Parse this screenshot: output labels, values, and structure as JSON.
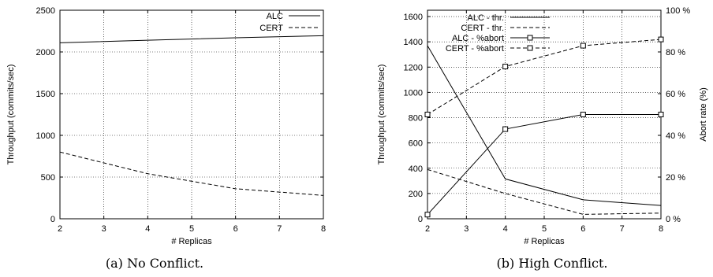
{
  "chart_data": [
    {
      "type": "line",
      "caption": "(a) No Conflict.",
      "xlabel": "# Replicas",
      "ylabel": "Throughput (commits/sec)",
      "xlim": [
        2,
        8
      ],
      "ylim": [
        0,
        2500
      ],
      "xticks": [
        2,
        3,
        4,
        5,
        6,
        7,
        8
      ],
      "yticks": [
        0,
        500,
        1000,
        1500,
        2000,
        2500
      ],
      "grid": true,
      "legend_position": "top-right",
      "series": [
        {
          "name": "ALC",
          "style": "solid",
          "x": [
            2,
            4,
            6,
            8
          ],
          "y": [
            2110,
            2140,
            2170,
            2195
          ]
        },
        {
          "name": "CERT",
          "style": "dashed",
          "x": [
            2,
            4,
            6,
            8
          ],
          "y": [
            800,
            540,
            360,
            280
          ]
        }
      ]
    },
    {
      "type": "line",
      "caption": "(b) High Conflict.",
      "xlabel": "# Replicas",
      "ylabel": "Throughput (commits/sec)",
      "y2label": "Abort rate (%)",
      "xlim": [
        2,
        8
      ],
      "ylim": [
        0,
        1650
      ],
      "y2lim": [
        0,
        100
      ],
      "xticks": [
        2,
        3,
        4,
        5,
        6,
        7,
        8
      ],
      "yticks": [
        0,
        200,
        400,
        600,
        800,
        1000,
        1200,
        1400,
        1600
      ],
      "y2ticks": [
        0,
        20,
        40,
        60,
        80,
        100
      ],
      "y2tick_suffix": " %",
      "grid": true,
      "legend_position": "top-left",
      "series": [
        {
          "name": "ALC - thr.",
          "style": "solid",
          "axis": "left",
          "marker": false,
          "x": [
            2,
            4,
            6,
            8
          ],
          "y": [
            1370,
            315,
            150,
            105
          ]
        },
        {
          "name": "CERT - thr.",
          "style": "dashed",
          "axis": "left",
          "marker": false,
          "x": [
            2,
            4,
            6,
            8
          ],
          "y": [
            390,
            200,
            35,
            45
          ]
        },
        {
          "name": "ALC - %abort",
          "style": "solid",
          "axis": "right",
          "marker": true,
          "x": [
            2,
            4,
            6,
            8
          ],
          "y": [
            2,
            43,
            50,
            50
          ]
        },
        {
          "name": "CERT - %abort",
          "style": "dashed",
          "axis": "right",
          "marker": true,
          "x": [
            2,
            4,
            6,
            8
          ],
          "y": [
            50,
            73,
            83,
            86
          ]
        }
      ]
    }
  ]
}
